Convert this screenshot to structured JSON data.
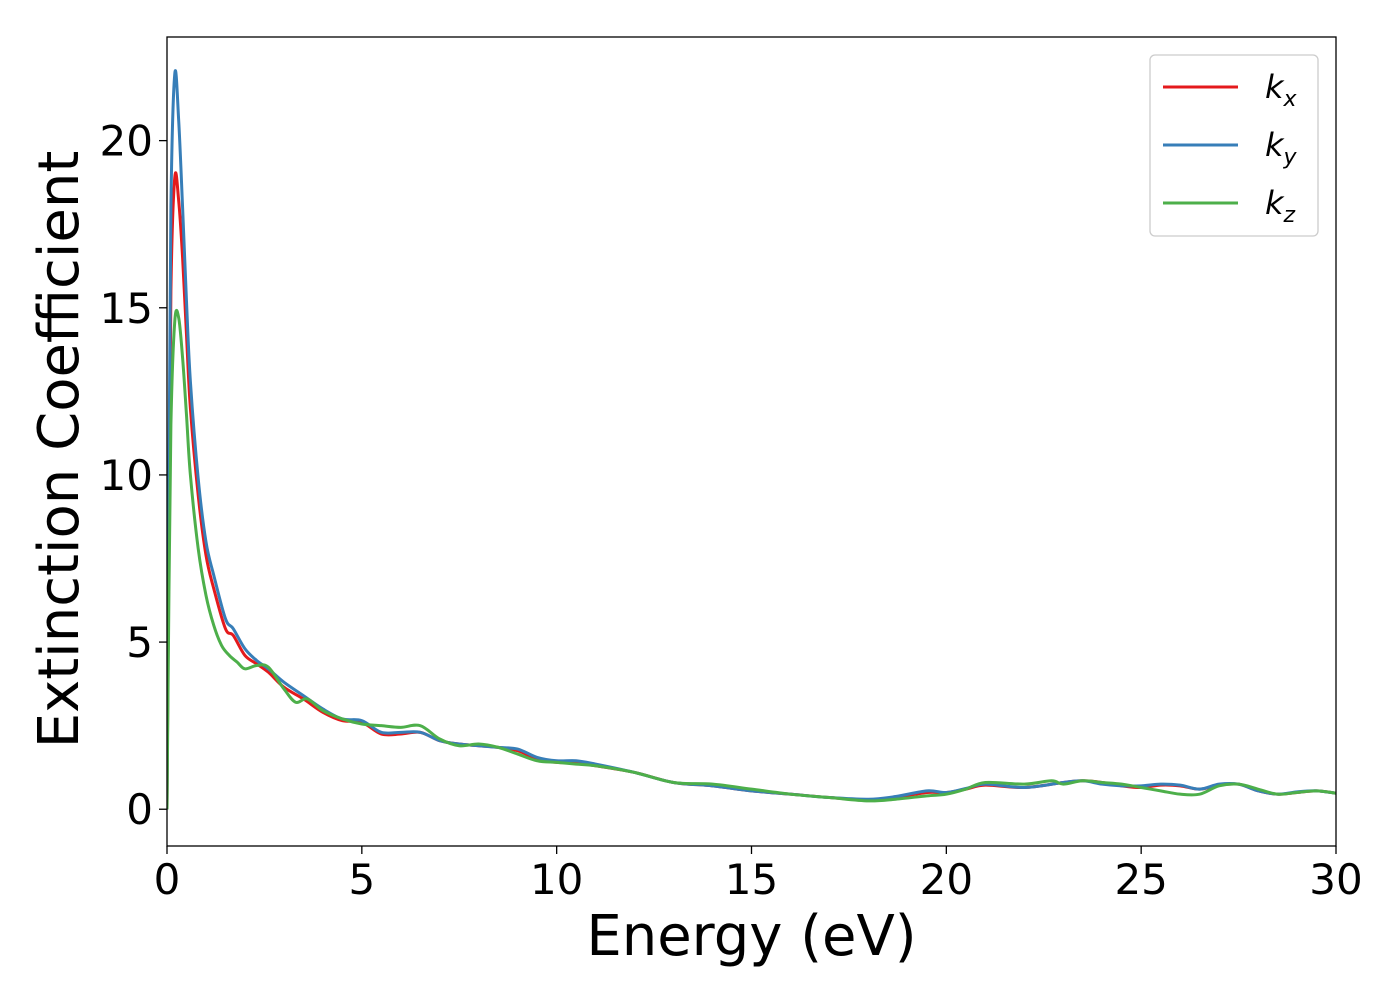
{
  "chart_data": {
    "type": "line",
    "xlabel": "Energy (eV)",
    "ylabel": "Extinction Coefficient",
    "xlim": [
      0,
      30
    ],
    "ylim": [
      -1.1,
      23.1
    ],
    "xticks": [
      0,
      5,
      10,
      15,
      20,
      25,
      30
    ],
    "yticks": [
      0,
      5,
      10,
      15,
      20
    ],
    "grid": false,
    "legend_position": "top-right",
    "series": [
      {
        "name": "k_x",
        "base": "k",
        "sub": "x",
        "color": "#e41a1c",
        "x": [
          0,
          0.05,
          0.1,
          0.2,
          0.3,
          0.4,
          0.5,
          0.6,
          0.8,
          1.0,
          1.2,
          1.5,
          1.7,
          2.0,
          2.3,
          2.6,
          3.0,
          3.5,
          4.0,
          4.5,
          5.0,
          5.5,
          6.0,
          6.5,
          7.0,
          7.5,
          8.0,
          8.5,
          9.0,
          9.5,
          10.0,
          10.5,
          11.0,
          12.0,
          13.0,
          14.0,
          15.0,
          16.0,
          17.0,
          18.0,
          18.7,
          19.5,
          20.0,
          20.5,
          21.0,
          22.0,
          23.0,
          23.5,
          24.0,
          24.5,
          25.0,
          25.5,
          26.0,
          26.5,
          27.0,
          27.5,
          28.0,
          28.5,
          29.0,
          29.5,
          30.0
        ],
        "y": [
          0,
          8.5,
          15.5,
          18.9,
          18.2,
          16.5,
          14.2,
          12.0,
          9.4,
          7.6,
          6.6,
          5.4,
          5.2,
          4.6,
          4.35,
          4.1,
          3.65,
          3.3,
          2.9,
          2.65,
          2.6,
          2.25,
          2.25,
          2.3,
          2.05,
          1.95,
          1.9,
          1.85,
          1.75,
          1.5,
          1.4,
          1.4,
          1.3,
          1.1,
          0.8,
          0.7,
          0.55,
          0.45,
          0.35,
          0.28,
          0.35,
          0.5,
          0.5,
          0.6,
          0.72,
          0.65,
          0.8,
          0.85,
          0.8,
          0.7,
          0.65,
          0.72,
          0.7,
          0.6,
          0.72,
          0.75,
          0.55,
          0.45,
          0.5,
          0.55,
          0.48
        ]
      },
      {
        "name": "k_y",
        "base": "k",
        "sub": "y",
        "color": "#377eb8",
        "x": [
          0,
          0.05,
          0.1,
          0.2,
          0.3,
          0.4,
          0.5,
          0.6,
          0.8,
          1.0,
          1.2,
          1.5,
          1.7,
          2.0,
          2.3,
          2.6,
          3.0,
          3.5,
          4.0,
          4.5,
          5.0,
          5.5,
          6.0,
          6.5,
          7.0,
          7.5,
          8.0,
          8.5,
          9.0,
          9.5,
          10.0,
          10.5,
          11.0,
          12.0,
          13.0,
          14.0,
          15.0,
          16.0,
          17.0,
          18.0,
          18.7,
          19.5,
          20.0,
          20.5,
          21.0,
          22.0,
          23.0,
          23.5,
          24.0,
          24.5,
          25.0,
          25.5,
          26.0,
          26.5,
          27.0,
          27.5,
          28.0,
          28.5,
          29.0,
          29.5,
          30.0
        ],
        "y": [
          0,
          10.0,
          18.0,
          22.0,
          20.6,
          18.0,
          15.2,
          12.8,
          9.9,
          8.0,
          7.0,
          5.7,
          5.4,
          4.8,
          4.45,
          4.2,
          3.8,
          3.4,
          3.0,
          2.7,
          2.65,
          2.3,
          2.3,
          2.3,
          2.05,
          1.95,
          1.9,
          1.85,
          1.8,
          1.55,
          1.45,
          1.45,
          1.35,
          1.1,
          0.8,
          0.7,
          0.55,
          0.45,
          0.35,
          0.3,
          0.38,
          0.55,
          0.5,
          0.62,
          0.75,
          0.65,
          0.8,
          0.85,
          0.75,
          0.7,
          0.7,
          0.75,
          0.72,
          0.6,
          0.75,
          0.75,
          0.55,
          0.45,
          0.52,
          0.55,
          0.48
        ]
      },
      {
        "name": "k_z",
        "base": "k",
        "sub": "z",
        "color": "#4daf4a",
        "x": [
          0,
          0.05,
          0.1,
          0.2,
          0.3,
          0.4,
          0.5,
          0.6,
          0.8,
          1.0,
          1.2,
          1.4,
          1.6,
          1.8,
          2.0,
          2.3,
          2.6,
          3.0,
          3.3,
          3.6,
          4.0,
          4.5,
          5.0,
          5.5,
          6.0,
          6.5,
          7.0,
          7.5,
          8.0,
          8.5,
          9.0,
          9.5,
          10.0,
          10.5,
          11.0,
          12.0,
          13.0,
          14.0,
          15.0,
          16.0,
          17.0,
          18.0,
          18.7,
          19.5,
          20.0,
          20.5,
          21.0,
          22.0,
          22.7,
          23.0,
          23.5,
          24.0,
          24.5,
          25.0,
          25.5,
          26.0,
          26.5,
          27.0,
          27.5,
          28.0,
          28.5,
          29.0,
          29.5,
          30.0
        ],
        "y": [
          0,
          6.5,
          11.5,
          14.6,
          14.7,
          13.5,
          11.8,
          10.0,
          7.8,
          6.4,
          5.5,
          4.9,
          4.6,
          4.4,
          4.2,
          4.3,
          4.25,
          3.6,
          3.2,
          3.3,
          2.95,
          2.7,
          2.55,
          2.5,
          2.45,
          2.5,
          2.1,
          1.9,
          1.95,
          1.85,
          1.65,
          1.45,
          1.4,
          1.35,
          1.3,
          1.1,
          0.8,
          0.75,
          0.6,
          0.45,
          0.35,
          0.25,
          0.3,
          0.4,
          0.45,
          0.6,
          0.8,
          0.75,
          0.85,
          0.75,
          0.85,
          0.8,
          0.75,
          0.65,
          0.55,
          0.45,
          0.45,
          0.7,
          0.75,
          0.6,
          0.45,
          0.5,
          0.55,
          0.48
        ]
      }
    ]
  }
}
